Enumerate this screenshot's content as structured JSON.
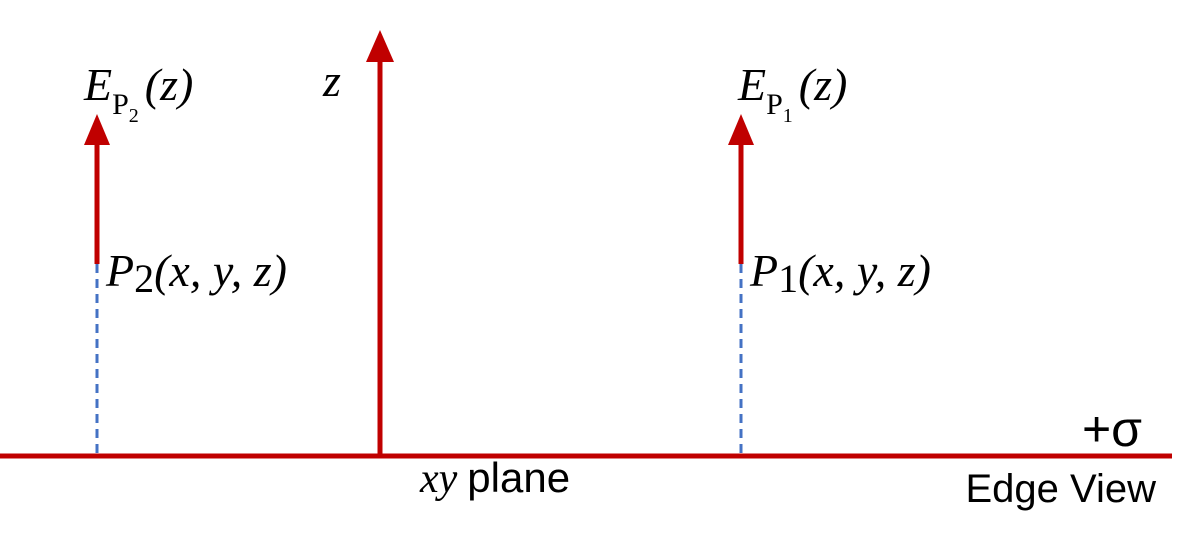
{
  "labels": {
    "field_p2": {
      "symbol": "E",
      "sub": "P",
      "subsub": "2",
      "arg": "(z)"
    },
    "z_axis": "z",
    "field_p1": {
      "symbol": "E",
      "sub": "P",
      "subsub": "1",
      "arg": "(z)"
    },
    "point_p2": {
      "symbol": "P",
      "sub": "2",
      "arg": "(x, y, z)"
    },
    "point_p1": {
      "symbol": "P",
      "sub": "1",
      "arg": "(x, y, z)"
    },
    "plane": {
      "italic": "xy",
      "text": "plane"
    },
    "charge": "+σ",
    "view": "Edge View"
  }
}
